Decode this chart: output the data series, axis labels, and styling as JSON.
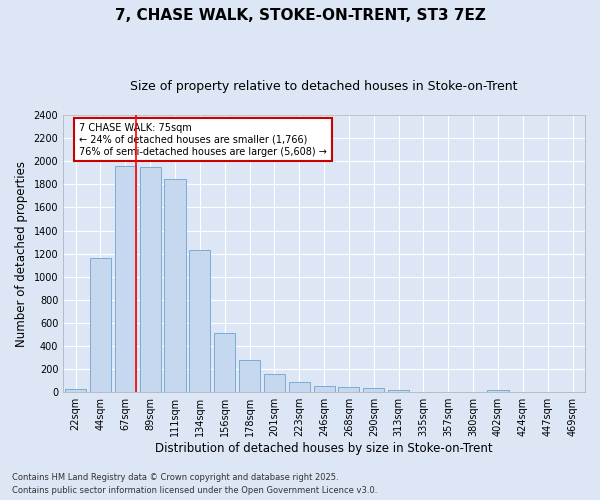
{
  "title": "7, CHASE WALK, STOKE-ON-TRENT, ST3 7EZ",
  "subtitle": "Size of property relative to detached houses in Stoke-on-Trent",
  "xlabel": "Distribution of detached houses by size in Stoke-on-Trent",
  "ylabel": "Number of detached properties",
  "bar_color": "#c5d8f0",
  "bar_edge_color": "#7aadd4",
  "background_color": "#dce6f5",
  "grid_color": "#ffffff",
  "categories": [
    "22sqm",
    "44sqm",
    "67sqm",
    "89sqm",
    "111sqm",
    "134sqm",
    "156sqm",
    "178sqm",
    "201sqm",
    "223sqm",
    "246sqm",
    "268sqm",
    "290sqm",
    "313sqm",
    "335sqm",
    "357sqm",
    "380sqm",
    "402sqm",
    "424sqm",
    "447sqm",
    "469sqm"
  ],
  "values": [
    25,
    1160,
    1960,
    1950,
    1850,
    1230,
    510,
    275,
    155,
    90,
    50,
    45,
    40,
    20,
    5,
    5,
    5,
    15,
    5,
    5,
    5
  ],
  "ylim": [
    0,
    2400
  ],
  "yticks": [
    0,
    200,
    400,
    600,
    800,
    1000,
    1200,
    1400,
    1600,
    1800,
    2000,
    2200,
    2400
  ],
  "red_line_index": 2,
  "annotation_text": "7 CHASE WALK: 75sqm\n← 24% of detached houses are smaller (1,766)\n76% of semi-detached houses are larger (5,608) →",
  "annotation_box_color": "#ffffff",
  "annotation_border_color": "#cc0000",
  "footer_line1": "Contains HM Land Registry data © Crown copyright and database right 2025.",
  "footer_line2": "Contains public sector information licensed under the Open Government Licence v3.0.",
  "title_fontsize": 11,
  "subtitle_fontsize": 9,
  "tick_fontsize": 7,
  "label_fontsize": 8.5,
  "figsize": [
    6.0,
    5.0
  ],
  "dpi": 100
}
